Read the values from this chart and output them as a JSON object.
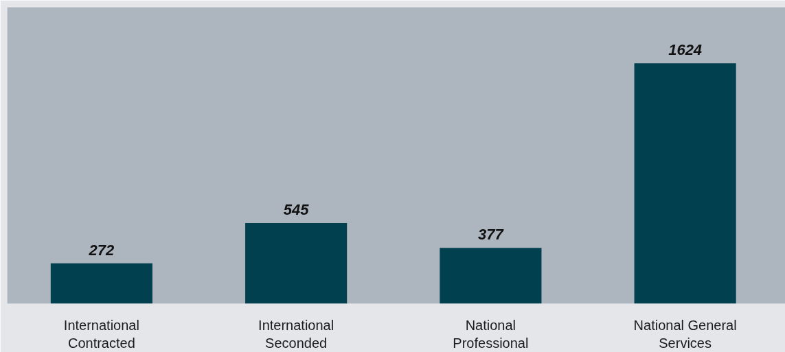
{
  "chart_data": {
    "type": "bar",
    "categories": [
      "International Contracted",
      "International Seconded",
      "National Professional",
      "National General Services"
    ],
    "values": [
      272,
      545,
      377,
      1624
    ],
    "color": "#00404f",
    "data_labels": true,
    "grid": false
  }
}
